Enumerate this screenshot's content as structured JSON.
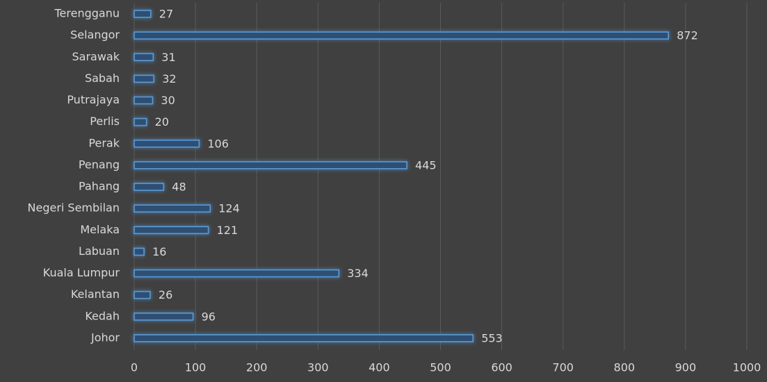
{
  "chart_data": {
    "type": "bar",
    "orientation": "horizontal",
    "title": "",
    "xlabel": "",
    "ylabel": "",
    "categories": [
      "Terengganu",
      "Selangor",
      "Sarawak",
      "Sabah",
      "Putrajaya",
      "Perlis",
      "Perak",
      "Penang",
      "Pahang",
      "Negeri Sembilan",
      "Melaka",
      "Labuan",
      "Kuala Lumpur",
      "Kelantan",
      "Kedah",
      "Johor"
    ],
    "values": [
      27,
      872,
      31,
      32,
      30,
      20,
      106,
      445,
      48,
      124,
      121,
      16,
      334,
      26,
      96,
      553
    ],
    "xlim": [
      0,
      1000
    ],
    "xticks": [
      "0",
      "100",
      "200",
      "300",
      "400",
      "500",
      "600",
      "700",
      "800",
      "900",
      "1000"
    ],
    "grid": "vertical",
    "legend": "none",
    "colors": {
      "background": "#404040",
      "bar_fill": "#2f4f73",
      "bar_stroke": "#5b9bd5",
      "bar_glow": "#5b9bd5",
      "text": "#d9d9d9",
      "grid": "#5a5a5a"
    }
  }
}
